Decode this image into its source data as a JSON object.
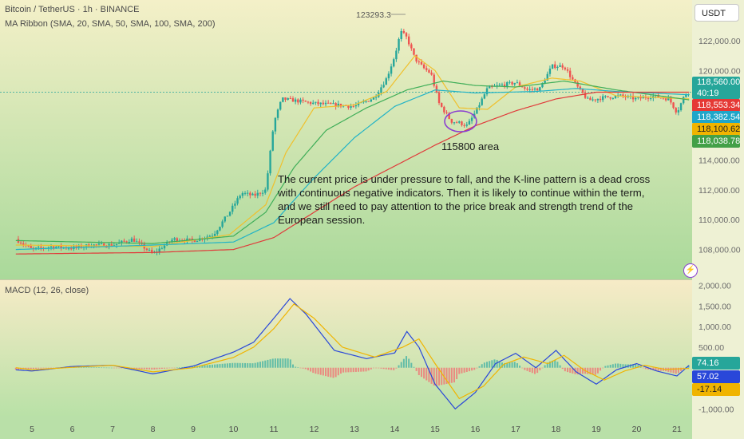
{
  "header": {
    "symbol_line": "Bitcoin / TetherUS · 1h · BINANCE",
    "indicator_line": "MA Ribbon (SMA, 20, SMA, 50, SMA, 100, SMA, 200)"
  },
  "currency_button": "USDT",
  "high_marker": "123293.3",
  "annotation": {
    "circle_label": "115800 area",
    "text_lines": [
      "The current price is under pressure to fall, and the K-line pattern is a dead cross",
      " with continuous negative indicators. Then it is likely to continue within the term,",
      " and we still need to pay attention to the price break and strength trend of the",
      "European session."
    ]
  },
  "price_labels": [
    {
      "value": "118,560.00",
      "sub": "40:19",
      "color": "#26a69a"
    },
    {
      "value": "118,553.34",
      "color": "#e53935"
    },
    {
      "value": "118,382.54",
      "color": "#1fa6c9"
    },
    {
      "value": "118,100.62",
      "color": "#f0b400"
    },
    {
      "value": "118,038.78",
      "color": "#43a047"
    }
  ],
  "macd_header": "MACD (12, 26, close)",
  "macd_labels": [
    {
      "value": "74.16",
      "color": "#26a69a"
    },
    {
      "value": "57.02",
      "color": "#2947d9"
    },
    {
      "value": "-17.14",
      "color": "#f0b400"
    }
  ],
  "colors": {
    "bg_top": "#f4f0c8",
    "bg_bottom": "#a9d99a",
    "up": "#26a69a",
    "down": "#ef5350",
    "sma20": "#f0c02c",
    "sma50": "#3fae58",
    "sma100": "#22b3c6",
    "sma200": "#e03a3a",
    "macd_line": "#2947d9",
    "signal_line": "#f0b400",
    "circle": "#8a3fd1"
  },
  "chart_data": [
    {
      "type": "candlestick",
      "title": "Bitcoin / TetherUS · 1h · BINANCE",
      "x_tick_labels": [
        "5",
        "6",
        "7",
        "8",
        "9",
        "10",
        "11",
        "12",
        "13",
        "14",
        "15",
        "16",
        "17",
        "18",
        "19",
        "20",
        "21"
      ],
      "y_tick_labels": [
        "108,000.00",
        "110,000.00",
        "112,000.00",
        "114,000.00",
        "116,000.00",
        "118,000.00",
        "120,000.00",
        "122,000.00"
      ],
      "ylim": [
        106800,
        124200
      ],
      "last_price": 118560,
      "high_marker": 123293.3,
      "close_path": [
        {
          "day": 4.6,
          "price": 108700
        },
        {
          "day": 5.0,
          "price": 108000
        },
        {
          "day": 5.5,
          "price": 108200
        },
        {
          "day": 6.0,
          "price": 108100
        },
        {
          "day": 6.5,
          "price": 108300
        },
        {
          "day": 7.0,
          "price": 108300
        },
        {
          "day": 7.5,
          "price": 108700
        },
        {
          "day": 8.0,
          "price": 107700
        },
        {
          "day": 8.5,
          "price": 108700
        },
        {
          "day": 9.0,
          "price": 108600
        },
        {
          "day": 9.5,
          "price": 109000
        },
        {
          "day": 9.9,
          "price": 110500
        },
        {
          "day": 10.2,
          "price": 111800
        },
        {
          "day": 10.5,
          "price": 111600
        },
        {
          "day": 10.8,
          "price": 112000
        },
        {
          "day": 11.0,
          "price": 116500
        },
        {
          "day": 11.2,
          "price": 118100
        },
        {
          "day": 11.5,
          "price": 118000
        },
        {
          "day": 12.0,
          "price": 117800
        },
        {
          "day": 12.5,
          "price": 117700
        },
        {
          "day": 13.0,
          "price": 117600
        },
        {
          "day": 13.5,
          "price": 118200
        },
        {
          "day": 13.8,
          "price": 119500
        },
        {
          "day": 14.0,
          "price": 121000
        },
        {
          "day": 14.15,
          "price": 122600
        },
        {
          "day": 14.3,
          "price": 122200
        },
        {
          "day": 14.5,
          "price": 120800
        },
        {
          "day": 14.7,
          "price": 120200
        },
        {
          "day": 14.9,
          "price": 119800
        },
        {
          "day": 15.1,
          "price": 117800
        },
        {
          "day": 15.4,
          "price": 116600
        },
        {
          "day": 15.6,
          "price": 116500
        },
        {
          "day": 15.8,
          "price": 116300
        },
        {
          "day": 16.0,
          "price": 117200
        },
        {
          "day": 16.3,
          "price": 118800
        },
        {
          "day": 16.6,
          "price": 119000
        },
        {
          "day": 17.0,
          "price": 119200
        },
        {
          "day": 17.3,
          "price": 118700
        },
        {
          "day": 17.6,
          "price": 118800
        },
        {
          "day": 17.9,
          "price": 120300
        },
        {
          "day": 18.2,
          "price": 120300
        },
        {
          "day": 18.5,
          "price": 119000
        },
        {
          "day": 18.8,
          "price": 118000
        },
        {
          "day": 19.2,
          "price": 118200
        },
        {
          "day": 19.6,
          "price": 118300
        },
        {
          "day": 20.0,
          "price": 118100
        },
        {
          "day": 20.4,
          "price": 118300
        },
        {
          "day": 20.8,
          "price": 118100
        },
        {
          "day": 21.0,
          "price": 117200
        },
        {
          "day": 21.2,
          "price": 118400
        },
        {
          "day": 21.3,
          "price": 118560
        }
      ],
      "moving_averages": [
        {
          "name": "SMA 20",
          "color": "#f0c02c",
          "points": [
            {
              "day": 4.6,
              "price": 108300
            },
            {
              "day": 8.0,
              "price": 108200
            },
            {
              "day": 9.9,
              "price": 109000
            },
            {
              "day": 10.8,
              "price": 111000
            },
            {
              "day": 11.3,
              "price": 114500
            },
            {
              "day": 12.0,
              "price": 117500
            },
            {
              "day": 13.0,
              "price": 117700
            },
            {
              "day": 13.8,
              "price": 118600
            },
            {
              "day": 14.5,
              "price": 121000
            },
            {
              "day": 15.0,
              "price": 120000
            },
            {
              "day": 15.6,
              "price": 117500
            },
            {
              "day": 16.3,
              "price": 117400
            },
            {
              "day": 17.0,
              "price": 118900
            },
            {
              "day": 17.9,
              "price": 119500
            },
            {
              "day": 18.6,
              "price": 119300
            },
            {
              "day": 19.5,
              "price": 118300
            },
            {
              "day": 20.5,
              "price": 118200
            },
            {
              "day": 21.3,
              "price": 118100
            }
          ]
        },
        {
          "name": "SMA 50",
          "color": "#3fae58",
          "points": [
            {
              "day": 4.6,
              "price": 108600
            },
            {
              "day": 8.0,
              "price": 108400
            },
            {
              "day": 10.0,
              "price": 108900
            },
            {
              "day": 10.8,
              "price": 110500
            },
            {
              "day": 11.5,
              "price": 113500
            },
            {
              "day": 12.3,
              "price": 116000
            },
            {
              "day": 13.3,
              "price": 117500
            },
            {
              "day": 14.3,
              "price": 118700
            },
            {
              "day": 15.2,
              "price": 119300
            },
            {
              "day": 16.0,
              "price": 119000
            },
            {
              "day": 17.0,
              "price": 118900
            },
            {
              "day": 18.2,
              "price": 119300
            },
            {
              "day": 19.5,
              "price": 118700
            },
            {
              "day": 21.3,
              "price": 118040
            }
          ]
        },
        {
          "name": "SMA 100",
          "color": "#22b3c6",
          "points": [
            {
              "day": 4.6,
              "price": 108000
            },
            {
              "day": 8.0,
              "price": 108300
            },
            {
              "day": 10.0,
              "price": 108500
            },
            {
              "day": 11.0,
              "price": 109800
            },
            {
              "day": 12.0,
              "price": 112800
            },
            {
              "day": 13.0,
              "price": 115500
            },
            {
              "day": 14.0,
              "price": 117600
            },
            {
              "day": 15.0,
              "price": 118700
            },
            {
              "day": 16.0,
              "price": 118500
            },
            {
              "day": 17.5,
              "price": 118600
            },
            {
              "day": 18.5,
              "price": 118800
            },
            {
              "day": 19.5,
              "price": 118600
            },
            {
              "day": 21.3,
              "price": 118380
            }
          ]
        },
        {
          "name": "SMA 200",
          "color": "#e03a3a",
          "points": [
            {
              "day": 4.6,
              "price": 107700
            },
            {
              "day": 8.0,
              "price": 107800
            },
            {
              "day": 10.0,
              "price": 108000
            },
            {
              "day": 11.0,
              "price": 108800
            },
            {
              "day": 12.0,
              "price": 110500
            },
            {
              "day": 13.0,
              "price": 112200
            },
            {
              "day": 14.0,
              "price": 113600
            },
            {
              "day": 15.0,
              "price": 115000
            },
            {
              "day": 16.0,
              "price": 116300
            },
            {
              "day": 17.0,
              "price": 117300
            },
            {
              "day": 18.0,
              "price": 118100
            },
            {
              "day": 19.0,
              "price": 118550
            },
            {
              "day": 21.3,
              "price": 118550
            }
          ]
        }
      ]
    },
    {
      "type": "line",
      "title": "MACD (12, 26, close)",
      "y_tick_labels": [
        "2,000.00",
        "1,500.00",
        "1,000.00",
        "500.00",
        "-1,000.00"
      ],
      "ylim": [
        -1150,
        2050
      ],
      "series": [
        {
          "name": "MACD",
          "color": "#2947d9",
          "points": [
            {
              "day": 4.6,
              "price": -50
            },
            {
              "day": 5.0,
              "price": -80
            },
            {
              "day": 6.0,
              "price": 30
            },
            {
              "day": 7.0,
              "price": 60
            },
            {
              "day": 8.0,
              "price": -150
            },
            {
              "day": 9.0,
              "price": 40
            },
            {
              "day": 10.0,
              "price": 380
            },
            {
              "day": 10.5,
              "price": 620
            },
            {
              "day": 11.0,
              "price": 1200
            },
            {
              "day": 11.4,
              "price": 1680
            },
            {
              "day": 11.8,
              "price": 1300
            },
            {
              "day": 12.5,
              "price": 420
            },
            {
              "day": 13.3,
              "price": 220
            },
            {
              "day": 14.0,
              "price": 360
            },
            {
              "day": 14.3,
              "price": 880
            },
            {
              "day": 14.6,
              "price": 500
            },
            {
              "day": 15.0,
              "price": -400
            },
            {
              "day": 15.5,
              "price": -1000
            },
            {
              "day": 16.0,
              "price": -600
            },
            {
              "day": 16.5,
              "price": 100
            },
            {
              "day": 17.0,
              "price": 350
            },
            {
              "day": 17.5,
              "price": 0
            },
            {
              "day": 18.0,
              "price": 420
            },
            {
              "day": 18.5,
              "price": -100
            },
            {
              "day": 19.0,
              "price": -400
            },
            {
              "day": 19.5,
              "price": -50
            },
            {
              "day": 20.0,
              "price": 100
            },
            {
              "day": 20.5,
              "price": -80
            },
            {
              "day": 21.0,
              "price": -200
            },
            {
              "day": 21.3,
              "price": 57
            }
          ]
        },
        {
          "name": "Signal",
          "color": "#f0b400",
          "points": [
            {
              "day": 4.6,
              "price": 0
            },
            {
              "day": 5.0,
              "price": -50
            },
            {
              "day": 6.0,
              "price": 10
            },
            {
              "day": 7.0,
              "price": 60
            },
            {
              "day": 8.0,
              "price": -100
            },
            {
              "day": 9.0,
              "price": 0
            },
            {
              "day": 10.0,
              "price": 250
            },
            {
              "day": 10.5,
              "price": 500
            },
            {
              "day": 11.0,
              "price": 950
            },
            {
              "day": 11.5,
              "price": 1550
            },
            {
              "day": 12.0,
              "price": 1200
            },
            {
              "day": 12.7,
              "price": 500
            },
            {
              "day": 13.5,
              "price": 260
            },
            {
              "day": 14.2,
              "price": 500
            },
            {
              "day": 14.6,
              "price": 700
            },
            {
              "day": 15.0,
              "price": 100
            },
            {
              "day": 15.6,
              "price": -750
            },
            {
              "day": 16.2,
              "price": -450
            },
            {
              "day": 16.7,
              "price": 80
            },
            {
              "day": 17.2,
              "price": 260
            },
            {
              "day": 17.8,
              "price": 100
            },
            {
              "day": 18.2,
              "price": 300
            },
            {
              "day": 18.7,
              "price": -60
            },
            {
              "day": 19.2,
              "price": -300
            },
            {
              "day": 19.7,
              "price": -80
            },
            {
              "day": 20.2,
              "price": 60
            },
            {
              "day": 20.7,
              "price": -40
            },
            {
              "day": 21.3,
              "price": -17
            }
          ]
        }
      ],
      "histogram_last": 74.16
    }
  ]
}
